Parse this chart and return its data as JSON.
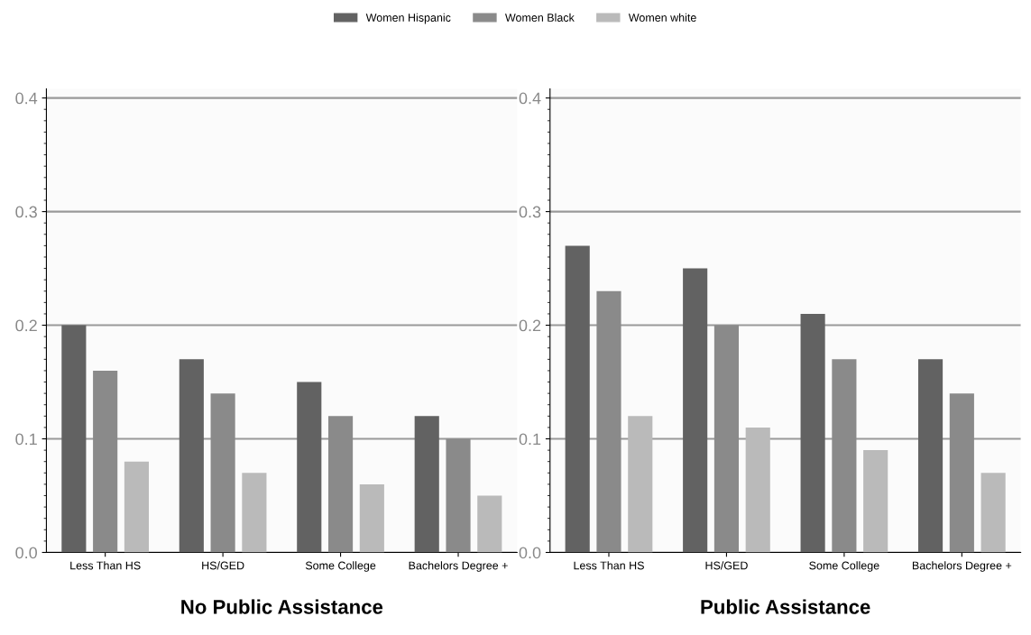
{
  "chart_data": [
    {
      "type": "bar",
      "xlabel": "No Public Assistance",
      "categories": [
        "Less Than HS",
        "HS/GED",
        "Some College",
        "Bachelors Degree +"
      ],
      "series": [
        {
          "name": "Women Hispanic",
          "color": "#626262",
          "values": [
            0.2,
            0.17,
            0.15,
            0.12
          ]
        },
        {
          "name": "Women Black",
          "color": "#8a8a8a",
          "values": [
            0.16,
            0.14,
            0.12,
            0.1
          ]
        },
        {
          "name": "Women white",
          "color": "#bababa",
          "values": [
            0.08,
            0.07,
            0.06,
            0.05
          ]
        }
      ],
      "ylim": [
        0,
        0.408
      ],
      "yticks": [
        {
          "value": 0,
          "label": "0.0"
        },
        {
          "value": 0.1,
          "label": "0.1"
        },
        {
          "value": 0.2,
          "label": "0.2"
        },
        {
          "value": 0.3,
          "label": "0.3"
        },
        {
          "value": 0.4,
          "label": "0.4"
        }
      ],
      "grid": "y",
      "legend": "top"
    },
    {
      "type": "bar",
      "xlabel": "Public Assistance",
      "categories": [
        "Less Than HS",
        "HS/GED",
        "Some College",
        "Bachelors Degree +"
      ],
      "series": [
        {
          "color": "#626262",
          "values": [
            0.27,
            0.25,
            0.21,
            0.17
          ]
        },
        {
          "color": "#8a8a8a",
          "values": [
            0.23,
            0.2,
            0.17,
            0.14
          ]
        },
        {
          "color": "#bababa",
          "values": [
            0.12,
            0.11,
            0.09,
            0.07
          ]
        }
      ],
      "ylim": [
        0,
        0.408
      ],
      "yticks": [
        {
          "value": 0,
          "label": "0.0"
        },
        {
          "value": 0.1,
          "label": "0.1"
        },
        {
          "value": 0.2,
          "label": "0.2"
        },
        {
          "value": 0.3,
          "label": "0.3"
        },
        {
          "value": 0.4,
          "label": "0.4"
        }
      ],
      "grid": "y"
    }
  ]
}
